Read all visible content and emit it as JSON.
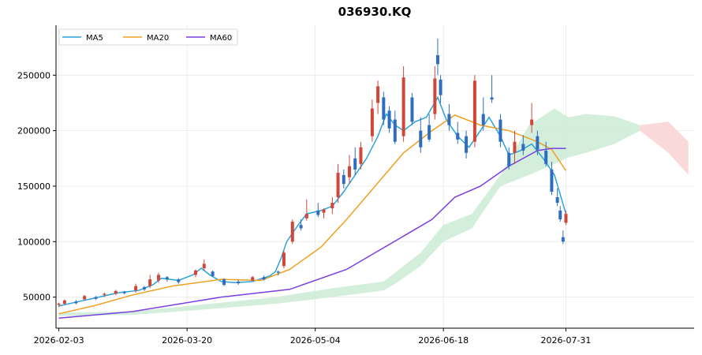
{
  "chart_data": {
    "type": "candlestick",
    "title": "036930.KQ",
    "xlabel": "",
    "ylabel": "",
    "ylim": [
      22000,
      295000
    ],
    "xlim": [
      "2026-02-02",
      "2026-09-14"
    ],
    "grid": true,
    "legend_position": "top-left",
    "x_tick_labels": [
      "2026-02-03",
      "2026-03-20",
      "2026-05-04",
      "2026-06-18",
      "2026-07-31"
    ],
    "y_tick_labels": [
      "50000",
      "100000",
      "150000",
      "200000",
      "250000"
    ],
    "colors": {
      "up": "#d0473a",
      "down": "#2f6dbf",
      "ma5": "#2aa3dd",
      "ma20": "#f0a020",
      "ma60": "#7a3fe0",
      "cloud_bull": "#cdebd6",
      "cloud_bear": "#f8d2d2"
    },
    "legend": [
      {
        "name": "MA5",
        "color": "#2aa3dd"
      },
      {
        "name": "MA20",
        "color": "#f0a020"
      },
      {
        "name": "MA60",
        "color": "#7a3fe0"
      }
    ],
    "series": [
      {
        "name": "MA5",
        "type": "line",
        "color": "#2aa3dd",
        "points": [
          [
            "2026-02-03",
            42000
          ],
          [
            "2026-02-10",
            46000
          ],
          [
            "2026-02-17",
            50000
          ],
          [
            "2026-02-24",
            54000
          ],
          [
            "2026-03-03",
            56000
          ],
          [
            "2026-03-08",
            61000
          ],
          [
            "2026-03-11",
            67000
          ],
          [
            "2026-03-17",
            65000
          ],
          [
            "2026-03-22",
            70000
          ],
          [
            "2026-03-25",
            76000
          ],
          [
            "2026-03-28",
            70000
          ],
          [
            "2026-04-01",
            64000
          ],
          [
            "2026-04-06",
            63000
          ],
          [
            "2026-04-12",
            64000
          ],
          [
            "2026-04-18",
            69000
          ],
          [
            "2026-04-20",
            73000
          ],
          [
            "2026-04-22",
            85000
          ],
          [
            "2026-04-24",
            100000
          ],
          [
            "2026-04-28",
            115000
          ],
          [
            "2026-05-01",
            125000
          ],
          [
            "2026-05-06",
            128000
          ],
          [
            "2026-05-10",
            132000
          ],
          [
            "2026-05-14",
            145000
          ],
          [
            "2026-05-18",
            160000
          ],
          [
            "2026-05-22",
            175000
          ],
          [
            "2026-05-26",
            195000
          ],
          [
            "2026-05-29",
            215000
          ],
          [
            "2026-06-01",
            205000
          ],
          [
            "2026-06-04",
            200000
          ],
          [
            "2026-06-08",
            208000
          ],
          [
            "2026-06-12",
            212000
          ],
          [
            "2026-06-16",
            230000
          ],
          [
            "2026-06-19",
            210000
          ],
          [
            "2026-06-23",
            195000
          ],
          [
            "2026-06-27",
            185000
          ],
          [
            "2026-07-01",
            200000
          ],
          [
            "2026-07-04",
            212000
          ],
          [
            "2026-07-08",
            195000
          ],
          [
            "2026-07-11",
            178000
          ],
          [
            "2026-07-15",
            182000
          ],
          [
            "2026-07-19",
            188000
          ],
          [
            "2026-07-23",
            175000
          ],
          [
            "2026-07-27",
            160000
          ],
          [
            "2026-07-31",
            125000
          ]
        ]
      },
      {
        "name": "MA20",
        "type": "line",
        "color": "#f0a020",
        "points": [
          [
            "2026-02-03",
            35000
          ],
          [
            "2026-02-15",
            42000
          ],
          [
            "2026-03-01",
            52000
          ],
          [
            "2026-03-15",
            60000
          ],
          [
            "2026-04-01",
            66000
          ],
          [
            "2026-04-15",
            65000
          ],
          [
            "2026-04-25",
            75000
          ],
          [
            "2026-05-06",
            95000
          ],
          [
            "2026-05-15",
            120000
          ],
          [
            "2026-05-25",
            150000
          ],
          [
            "2026-06-04",
            180000
          ],
          [
            "2026-06-14",
            200000
          ],
          [
            "2026-06-22",
            214000
          ],
          [
            "2026-07-01",
            205000
          ],
          [
            "2026-07-11",
            200000
          ],
          [
            "2026-07-21",
            190000
          ],
          [
            "2026-07-26",
            183000
          ],
          [
            "2026-07-31",
            164000
          ]
        ]
      },
      {
        "name": "MA60",
        "type": "line",
        "color": "#7a3fe0",
        "points": [
          [
            "2026-02-03",
            31000
          ],
          [
            "2026-03-01",
            37000
          ],
          [
            "2026-04-01",
            50000
          ],
          [
            "2026-04-25",
            57000
          ],
          [
            "2026-05-15",
            75000
          ],
          [
            "2026-06-04",
            105000
          ],
          [
            "2026-06-14",
            120000
          ],
          [
            "2026-06-22",
            140000
          ],
          [
            "2026-07-01",
            150000
          ],
          [
            "2026-07-11",
            168000
          ],
          [
            "2026-07-21",
            182000
          ],
          [
            "2026-07-26",
            184000
          ],
          [
            "2026-07-31",
            184000
          ]
        ]
      }
    ],
    "ohlc": [
      [
        "2026-02-03",
        43000,
        45000,
        41000,
        44000
      ],
      [
        "2026-02-05",
        44000,
        48000,
        43500,
        47000
      ],
      [
        "2026-02-09",
        46000,
        47500,
        43500,
        44500
      ],
      [
        "2026-02-12",
        48000,
        52000,
        47000,
        51000
      ],
      [
        "2026-02-16",
        50000,
        51000,
        47500,
        48500
      ],
      [
        "2026-02-19",
        52000,
        54000,
        50000,
        53000
      ],
      [
        "2026-02-23",
        53000,
        56500,
        52000,
        55500
      ],
      [
        "2026-02-26",
        55000,
        55500,
        52500,
        53500
      ],
      [
        "2026-03-02",
        56000,
        62000,
        54000,
        60000
      ],
      [
        "2026-03-05",
        59000,
        60000,
        55500,
        57000
      ],
      [
        "2026-03-07",
        60000,
        70000,
        58000,
        66000
      ],
      [
        "2026-03-10",
        65000,
        72000,
        63000,
        70000
      ],
      [
        "2026-03-13",
        68000,
        69000,
        64000,
        66000
      ],
      [
        "2026-03-17",
        66000,
        67000,
        62000,
        63500
      ],
      [
        "2026-03-23",
        70000,
        75000,
        68000,
        74000
      ],
      [
        "2026-03-26",
        76000,
        84000,
        74000,
        80000
      ],
      [
        "2026-03-29",
        73000,
        74000,
        68000,
        69000
      ],
      [
        "2026-04-02",
        66000,
        67000,
        60000,
        61000
      ],
      [
        "2026-04-07",
        64000,
        65500,
        61000,
        62500
      ],
      [
        "2026-04-12",
        65000,
        69000,
        64000,
        68000
      ],
      [
        "2026-04-16",
        68000,
        69500,
        65000,
        66000
      ],
      [
        "2026-04-21",
        73000,
        74000,
        69500,
        72000
      ],
      [
        "2026-04-23",
        78000,
        92000,
        76000,
        90000
      ],
      [
        "2026-04-26",
        100000,
        120000,
        98000,
        118000
      ],
      [
        "2026-04-29",
        115000,
        120000,
        110000,
        112000
      ],
      [
        "2026-05-01",
        121000,
        138000,
        119000,
        125000
      ],
      [
        "2026-05-05",
        128000,
        135000,
        122000,
        124000
      ],
      [
        "2026-05-07",
        126000,
        130000,
        121000,
        129000
      ],
      [
        "2026-05-10",
        130000,
        140000,
        125000,
        135000
      ],
      [
        "2026-05-12",
        140000,
        170000,
        135000,
        162000
      ],
      [
        "2026-05-14",
        160000,
        165000,
        148000,
        152000
      ],
      [
        "2026-05-16",
        158000,
        178000,
        152000,
        168000
      ],
      [
        "2026-05-18",
        175000,
        185000,
        160000,
        165000
      ],
      [
        "2026-05-20",
        170000,
        190000,
        165000,
        185000
      ],
      [
        "2026-05-24",
        195000,
        228000,
        190000,
        220000
      ],
      [
        "2026-05-26",
        225000,
        245000,
        215000,
        240000
      ],
      [
        "2026-05-28",
        230000,
        235000,
        205000,
        210000
      ],
      [
        "2026-05-30",
        218000,
        222000,
        198000,
        202000
      ],
      [
        "2026-06-01",
        210000,
        218000,
        188000,
        190000
      ],
      [
        "2026-06-04",
        195000,
        258000,
        190000,
        248000
      ],
      [
        "2026-06-07",
        230000,
        234000,
        205000,
        208000
      ],
      [
        "2026-06-10",
        200000,
        212000,
        180000,
        185000
      ],
      [
        "2026-06-13",
        205000,
        215000,
        190000,
        192000
      ],
      [
        "2026-06-15",
        215000,
        258000,
        210000,
        247000
      ],
      [
        "2026-06-16",
        268000,
        283000,
        250000,
        260000
      ],
      [
        "2026-06-17",
        246000,
        250000,
        225000,
        232000
      ],
      [
        "2026-06-20",
        215000,
        224000,
        200000,
        205000
      ],
      [
        "2026-06-23",
        198000,
        208000,
        188000,
        192000
      ],
      [
        "2026-06-26",
        195000,
        200000,
        175000,
        180000
      ],
      [
        "2026-06-29",
        190000,
        250000,
        185000,
        245000
      ],
      [
        "2026-07-02",
        215000,
        230000,
        200000,
        205000
      ],
      [
        "2026-07-05",
        230000,
        250000,
        225000,
        228000
      ],
      [
        "2026-07-08",
        210000,
        215000,
        185000,
        190000
      ],
      [
        "2026-07-11",
        180000,
        185000,
        165000,
        168000
      ],
      [
        "2026-07-13",
        180000,
        200000,
        170000,
        190000
      ],
      [
        "2026-07-16",
        188000,
        196000,
        178000,
        182000
      ],
      [
        "2026-07-19",
        205000,
        225000,
        198000,
        210000
      ],
      [
        "2026-07-21",
        195000,
        200000,
        178000,
        183000
      ],
      [
        "2026-07-24",
        182000,
        190000,
        168000,
        170000
      ],
      [
        "2026-07-26",
        165000,
        172000,
        142000,
        145000
      ],
      [
        "2026-07-28",
        140000,
        148000,
        132000,
        135000
      ],
      [
        "2026-07-29",
        128000,
        132000,
        118000,
        120000
      ],
      [
        "2026-07-30",
        104000,
        110000,
        98000,
        100000
      ],
      [
        "2026-07-31",
        117000,
        128000,
        115000,
        125000
      ]
    ],
    "cloud_upper": [
      [
        "2026-02-03",
        36000
      ],
      [
        "2026-03-01",
        37000
      ],
      [
        "2026-04-01",
        45000
      ],
      [
        "2026-04-20",
        50000
      ],
      [
        "2026-05-10",
        58000
      ],
      [
        "2026-05-28",
        64000
      ],
      [
        "2026-06-01",
        72000
      ],
      [
        "2026-06-10",
        90000
      ],
      [
        "2026-06-18",
        115000
      ],
      [
        "2026-06-28",
        125000
      ],
      [
        "2026-07-08",
        160000
      ],
      [
        "2026-07-18",
        205000
      ],
      [
        "2026-07-27",
        220000
      ],
      [
        "2026-08-01",
        212000
      ],
      [
        "2026-08-07",
        215000
      ],
      [
        "2026-08-17",
        213000
      ],
      [
        "2026-08-26",
        205000
      ],
      [
        "2026-09-05",
        208000
      ],
      [
        "2026-09-12",
        190000
      ]
    ],
    "cloud_lower": [
      [
        "2026-02-03",
        33000
      ],
      [
        "2026-03-01",
        34000
      ],
      [
        "2026-04-01",
        40000
      ],
      [
        "2026-04-20",
        44000
      ],
      [
        "2026-05-10",
        50000
      ],
      [
        "2026-05-28",
        56000
      ],
      [
        "2026-06-01",
        62000
      ],
      [
        "2026-06-10",
        78000
      ],
      [
        "2026-06-18",
        100000
      ],
      [
        "2026-06-28",
        112000
      ],
      [
        "2026-07-08",
        150000
      ],
      [
        "2026-07-18",
        160000
      ],
      [
        "2026-07-27",
        170000
      ],
      [
        "2026-08-01",
        176000
      ],
      [
        "2026-08-07",
        180000
      ],
      [
        "2026-08-17",
        188000
      ],
      [
        "2026-08-26",
        200000
      ],
      [
        "2026-09-05",
        180000
      ],
      [
        "2026-09-12",
        160000
      ]
    ]
  }
}
